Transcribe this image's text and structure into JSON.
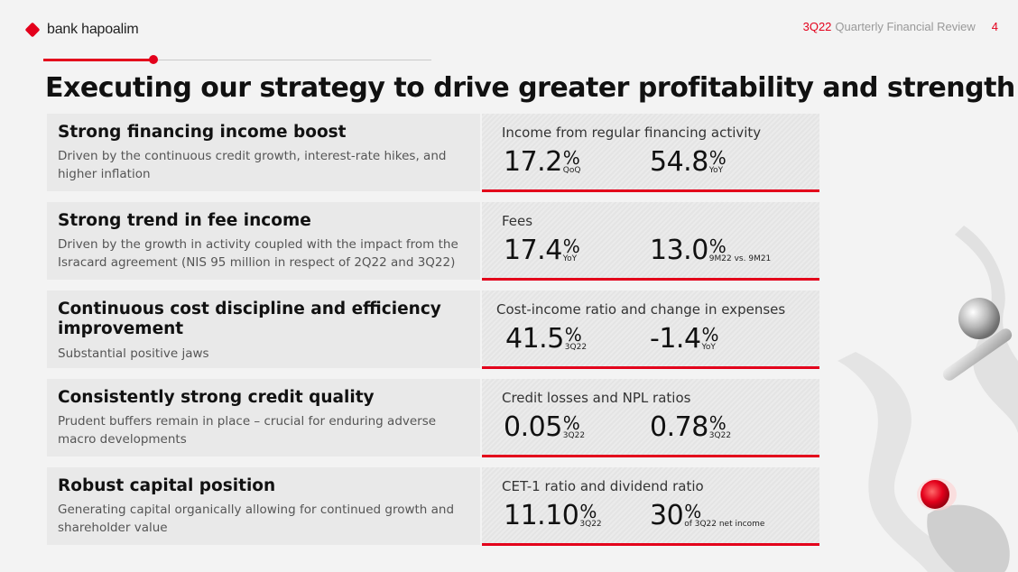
{
  "header": {
    "brand": "bank hapoalim",
    "quarter": "3Q22",
    "report_title": "Quarterly Financial Review",
    "page_number": "4"
  },
  "title": "Executing our strategy to drive greater profitability and strength",
  "rows": [
    {
      "heading": "Strong financing income boost",
      "description": "Driven by the continuous credit growth, interest-rate hikes, and higher inflation",
      "metric_label": "Income from regular financing activity",
      "metrics": [
        {
          "value": "17.2",
          "unit": "%",
          "sub": "QoQ"
        },
        {
          "value": "54.8",
          "unit": "%",
          "sub": "YoY"
        }
      ]
    },
    {
      "heading": "Strong trend in fee income",
      "description": "Driven by the growth in activity coupled with the impact from the Isracard agreement (NIS 95 million in respect of 2Q22 and 3Q22)",
      "metric_label": "Fees",
      "metrics": [
        {
          "value": "17.4",
          "unit": "%",
          "sub": "YoY"
        },
        {
          "value": "13.0",
          "unit": "%",
          "sub": "9M22 vs. 9M21"
        }
      ]
    },
    {
      "heading": "Continuous cost discipline and efficiency improvement",
      "description": "Substantial positive jaws",
      "metric_label": "Cost-income ratio and change in expenses",
      "metrics": [
        {
          "value": "41.5",
          "unit": "%",
          "sub": "3Q22"
        },
        {
          "value": "-1.4",
          "unit": "%",
          "sub": "YoY"
        }
      ]
    },
    {
      "heading": "Consistently strong credit quality",
      "description": "Prudent buffers remain in place – crucial for enduring adverse macro developments",
      "metric_label": "Credit losses and NPL ratios",
      "metrics": [
        {
          "value": "0.05",
          "unit": "%",
          "sub": "3Q22"
        },
        {
          "value": "0.78",
          "unit": "%",
          "sub": "3Q22"
        }
      ]
    },
    {
      "heading": "Robust capital position",
      "description": "Generating capital organically allowing for continued growth and shareholder value",
      "metric_label": "CET-1 ratio and dividend ratio",
      "metrics": [
        {
          "value": "11.10",
          "unit": "%",
          "sub": "3Q22"
        },
        {
          "value": "30",
          "unit": "%",
          "sub": "of 3Q22 net income"
        }
      ]
    }
  ],
  "colors": {
    "accent": "#e3001b",
    "panel": "#e9e9e9",
    "background": "#f3f3f3"
  }
}
